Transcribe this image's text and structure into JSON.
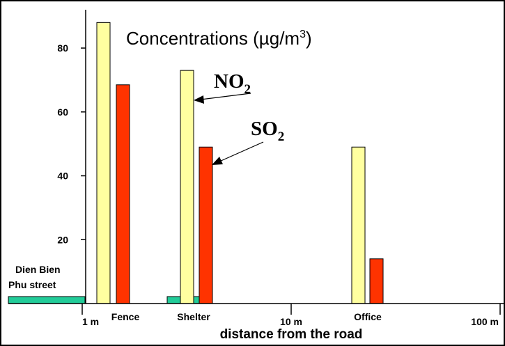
{
  "chart_data": {
    "type": "bar",
    "title": "Concentrations (µg/m",
    "title_superscript": "3",
    "title_suffix": ")",
    "xlabel": "distance from the road",
    "ylabel": "",
    "ylim": [
      0,
      92
    ],
    "y_ticks": [
      20,
      40,
      60,
      80
    ],
    "y_tick_labels": [
      "20",
      "40",
      "60",
      "80"
    ],
    "x_scale": "log",
    "x_distance_ticks": [
      {
        "label": "1 m",
        "meters": 1
      },
      {
        "label": "10 m",
        "meters": 10
      },
      {
        "label": "100 m",
        "meters": 100
      }
    ],
    "categories": [
      "Fence",
      "Shelter",
      "Office"
    ],
    "series": [
      {
        "name": "NO2",
        "values": [
          88,
          73,
          49
        ],
        "color": "#ffffa0"
      },
      {
        "name": "SO2",
        "values": [
          68.5,
          49,
          14
        ],
        "color": "#ff3300"
      }
    ],
    "annotations": {
      "no2": {
        "main": "NO",
        "sub": "2"
      },
      "so2": {
        "main": "SO",
        "sub": "2"
      },
      "street_label_line1": "Dien Bien",
      "street_label_line2": "Phu street"
    },
    "colors": {
      "road_marker": "#22cc99",
      "axis": "#000000",
      "frame": "#000000"
    },
    "grid": false
  }
}
